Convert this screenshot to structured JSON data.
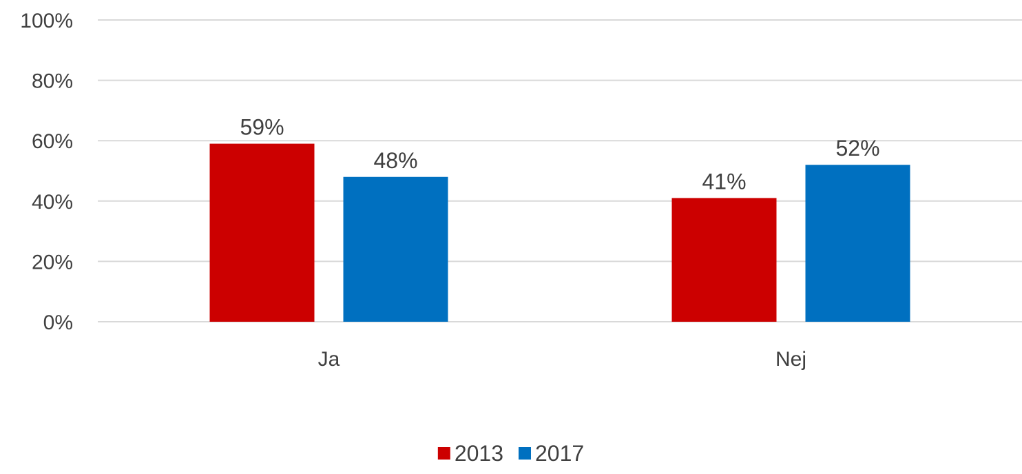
{
  "chart_data": {
    "type": "bar",
    "categories": [
      "Ja",
      "Nej"
    ],
    "series": [
      {
        "name": "2013",
        "values": [
          59,
          41
        ],
        "color": "#CC0000"
      },
      {
        "name": "2017",
        "values": [
          48,
          52
        ],
        "color": "#0070C0"
      }
    ],
    "value_suffix": "%",
    "ylim": [
      0,
      100
    ],
    "yticks": [
      0,
      20,
      40,
      60,
      80,
      100
    ],
    "ytick_labels": [
      "0%",
      "20%",
      "40%",
      "60%",
      "80%",
      "100%"
    ],
    "grid": true,
    "legend_position": "bottom",
    "data_labels": true
  }
}
